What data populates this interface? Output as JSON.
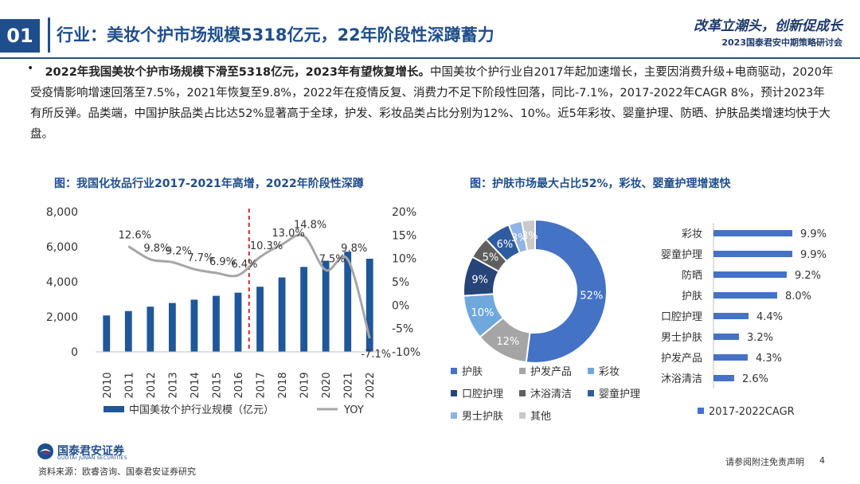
{
  "header": {
    "section_number": "01",
    "title": "行业：美妆个护市场规模5318亿元，22年阶段性深蹲蓄力",
    "slogan": "改革立潮头，创新促成长",
    "conference": "2023国泰君安中期策略研讨会"
  },
  "body": {
    "bullet": "•",
    "lead": "2022年我国美妆个护市场规模下滑至5318亿元，2023年有望恢复增长。",
    "text": "中国美妆个护行业自2017年起加速增长，主要因消费升级+电商驱动，2020年受疫情影响增速回落至7.5%，2021年恢复至9.8%，2022年在疫情反复、消费力不足下阶段性回落，同比-7.1%，2017-2022年CAGR 8%，预计2023年有所反弹。品类端，中国护肤品类占比达52%显著高于全球，护发、彩妆品类占比分别为12%、10%。近5年彩妆、婴童护理、防晒、护肤品类增速均快于大盘。"
  },
  "chart1_title": "图：我国化妆品行业2017-2021年高增，2022年阶段性深蹲",
  "chart2_title": "图：护肤市场最大占比52%，彩妆、婴童护理增速快",
  "chart_data": [
    {
      "type": "bar",
      "categories": [
        "2010",
        "2011",
        "2012",
        "2013",
        "2014",
        "2015",
        "2016",
        "2017",
        "2018",
        "2019",
        "2020",
        "2021",
        "2022"
      ],
      "series": [
        {
          "name": "中国美妆个护行业规模（亿元）",
          "values": [
            2080,
            2330,
            2580,
            2790,
            2980,
            3200,
            3380,
            3720,
            4250,
            4850,
            5200,
            5720,
            5318
          ]
        },
        {
          "name": "YOY",
          "values": [
            null,
            12.6,
            9.8,
            9.2,
            7.7,
            6.9,
            6.4,
            10.3,
            13.0,
            14.8,
            7.5,
            9.8,
            -7.1
          ]
        }
      ],
      "yticks": [
        "0",
        "2,000",
        "4,000",
        "6,000",
        "8,000"
      ],
      "y2ticks": [
        "-10%",
        "-5%",
        "0%",
        "5%",
        "10%",
        "15%",
        "20%"
      ],
      "yoy_labels": [
        "12.6%",
        "9.8%",
        "9.2%",
        "7.7%",
        "6.9%",
        "6.4%",
        "10.3%",
        "13.0%",
        "14.8%",
        "7.5%",
        "9.8%",
        "-7.1%"
      ],
      "ylim": [
        0,
        8000
      ],
      "y2lim": [
        -10,
        20
      ],
      "bar_color": "#1f5799",
      "line_color": "#a6a6a6",
      "divider_color": "#d9262c"
    },
    {
      "type": "pie",
      "labels": [
        "护肤",
        "护发产品",
        "彩妆",
        "口腔护理",
        "沐浴清洁",
        "婴童护理",
        "男士护肤",
        "其他"
      ],
      "values": [
        52,
        12,
        10,
        9,
        5,
        6,
        3,
        3
      ],
      "value_labels": [
        "52%",
        "12%",
        "10%",
        "9%",
        "5%",
        "6%",
        "3%",
        "3%"
      ],
      "colors": [
        "#4472c4",
        "#a5a5a5",
        "#6fa8dc",
        "#264478",
        "#5f5f5f",
        "#2e5c9e",
        "#8fb4e3",
        "#c9c9c9"
      ]
    },
    {
      "type": "bar",
      "categories": [
        "彩妆",
        "婴童护理",
        "防晒",
        "护肤",
        "口腔护理",
        "男士护肤",
        "护发产品",
        "沐浴清洁"
      ],
      "values": [
        9.9,
        9.9,
        9.2,
        8.0,
        4.4,
        3.2,
        4.3,
        2.6
      ],
      "value_labels": [
        "9.9%",
        "9.9%",
        "9.2%",
        "8.0%",
        "4.4%",
        "3.2%",
        "4.3%",
        "2.6%"
      ],
      "legend": "2017-2022CAGR",
      "bar_color": "#4472c4",
      "xlim": [
        0,
        10
      ]
    }
  ],
  "footer": {
    "logo_cn": "国泰君安证券",
    "logo_en": "GUOTAI JUNAN SECURITIES",
    "source": "资料来源：欧睿咨询、国泰君安证券研究",
    "disclaimer": "请参阅附注免责声明",
    "page": "4"
  }
}
